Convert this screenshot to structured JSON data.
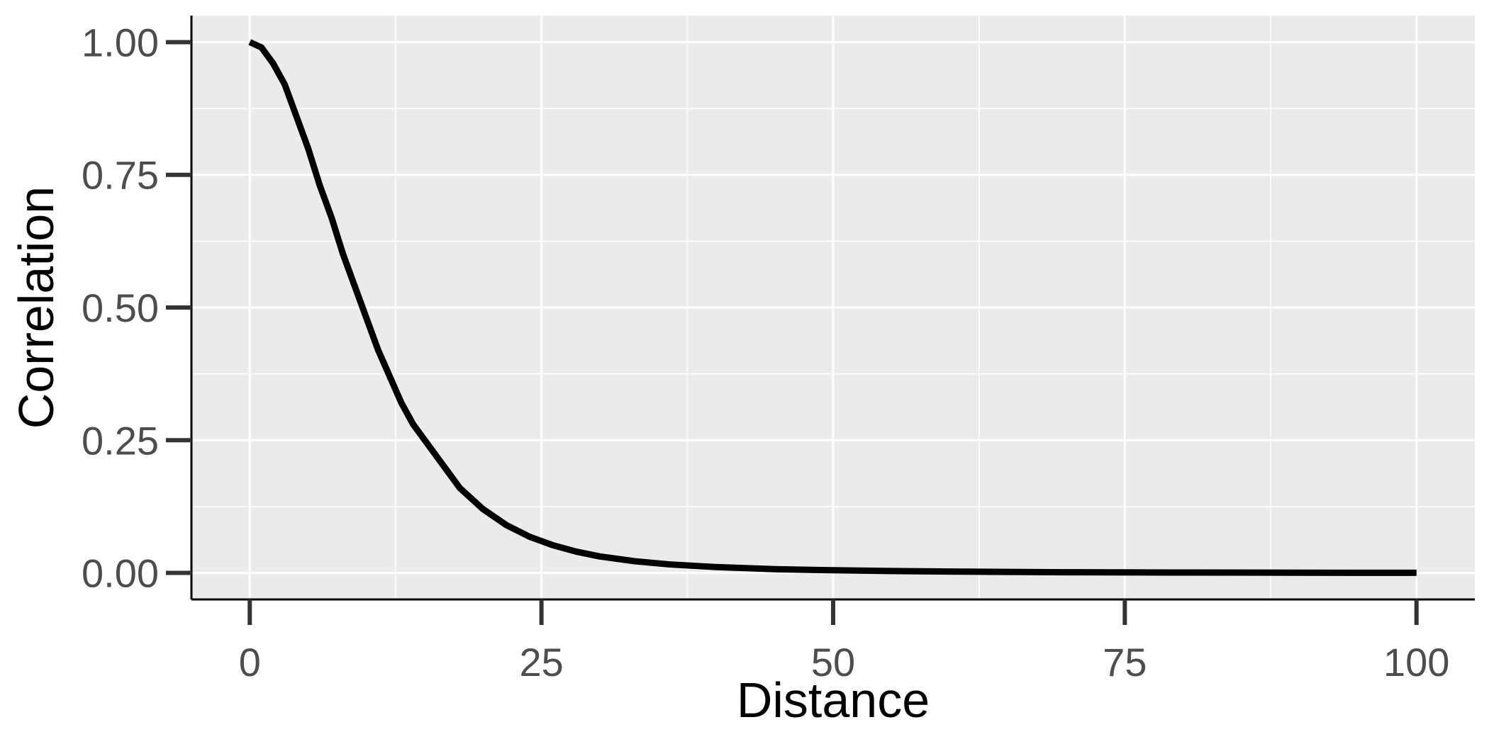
{
  "chart_data": {
    "type": "line",
    "title": "",
    "xlabel": "Distance",
    "ylabel": "Correlation",
    "xlim": [
      -5,
      105
    ],
    "ylim": [
      -0.05,
      1.05
    ],
    "x_ticks": [
      0,
      25,
      50,
      75,
      100
    ],
    "x_tick_labels": [
      "0",
      "25",
      "50",
      "75",
      "100"
    ],
    "y_ticks": [
      0,
      0.25,
      0.5,
      0.75,
      1.0
    ],
    "y_tick_labels": [
      "0.00",
      "0.25",
      "0.50",
      "0.75",
      "1.00"
    ],
    "grid": true,
    "background": "#ebebeb",
    "series": [
      {
        "color": "#000000",
        "x": [
          0,
          1,
          2,
          3,
          4,
          5,
          6,
          7,
          8,
          9,
          10,
          11,
          12,
          13,
          14,
          15,
          16,
          17,
          18,
          19,
          20,
          22,
          24,
          26,
          28,
          30,
          33,
          36,
          40,
          45,
          50,
          55,
          60,
          70,
          80,
          90,
          100
        ],
        "y": [
          1.0,
          0.99,
          0.96,
          0.92,
          0.86,
          0.8,
          0.73,
          0.67,
          0.6,
          0.54,
          0.48,
          0.42,
          0.37,
          0.32,
          0.28,
          0.25,
          0.22,
          0.19,
          0.16,
          0.14,
          0.12,
          0.09,
          0.068,
          0.052,
          0.04,
          0.031,
          0.022,
          0.016,
          0.011,
          0.007,
          0.005,
          0.0035,
          0.0025,
          0.0013,
          0.0007,
          0.0004,
          0.0002
        ]
      }
    ]
  }
}
